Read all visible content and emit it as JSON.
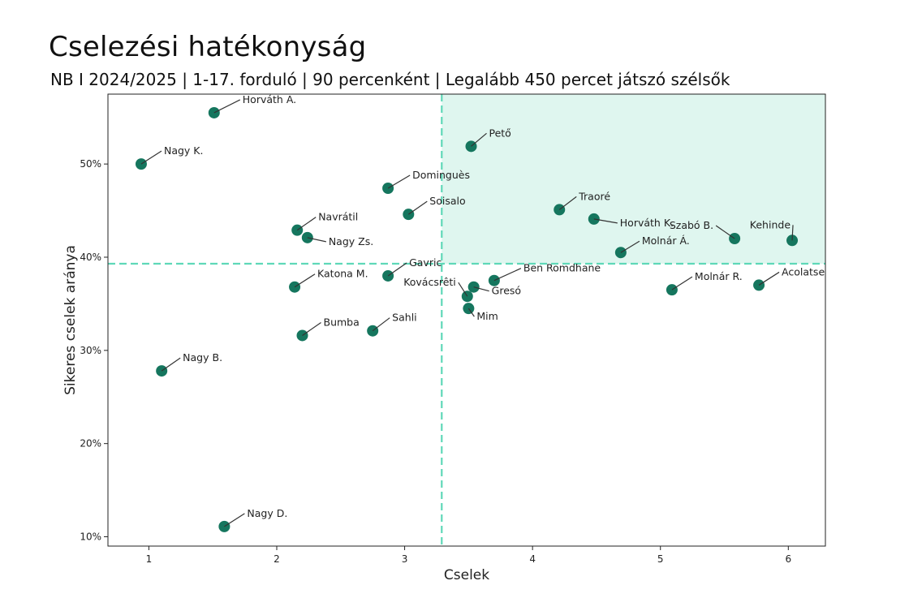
{
  "title": "Cselezési hatékonyság",
  "subtitle": "NB I 2024/2025  |  1-17. forduló  |  90 percenként  |  Legalább 450 percet játszó szélsők",
  "colors": {
    "point": "#15765e",
    "threshold_line": "#5fd8b8",
    "highlight_fill": "#dff6ef",
    "axis": "#222222"
  },
  "chart_data": {
    "type": "scatter",
    "title": "Cselezési hatékonyság",
    "subtitle": "NB I 2024/2025  |  1-17. forduló  |  90 percenként  |  Legalább 450 percet játszó szélsők",
    "xlabel": "Cselek",
    "ylabel": "Sikeres cselek aránya",
    "xlim": [
      0.68,
      6.29
    ],
    "ylim": [
      9.0,
      57.5
    ],
    "xticks": [
      1,
      2,
      3,
      4,
      5,
      6
    ],
    "xtick_labels": [
      "1",
      "2",
      "3",
      "4",
      "5",
      "6"
    ],
    "yticks": [
      10,
      20,
      30,
      40,
      50
    ],
    "ytick_labels": [
      "10%",
      "20%",
      "30%",
      "40%",
      "50%"
    ],
    "x_threshold": 3.29,
    "y_threshold": 39.3,
    "highlight_quadrant": "top-right",
    "grid": false,
    "points": [
      {
        "name": "Horváth A.",
        "x": 1.51,
        "y": 55.5,
        "lx": 35,
        "ly": -12,
        "anchor": "start"
      },
      {
        "name": "Nagy K.",
        "x": 0.94,
        "y": 50.0,
        "lx": 28,
        "ly": -12,
        "anchor": "start"
      },
      {
        "name": "Pető",
        "x": 3.52,
        "y": 51.9,
        "lx": 22,
        "ly": -12,
        "anchor": "start"
      },
      {
        "name": "Dominguès",
        "x": 2.87,
        "y": 47.4,
        "lx": 30,
        "ly": -12,
        "anchor": "start"
      },
      {
        "name": "Soisalo",
        "x": 3.03,
        "y": 44.6,
        "lx": 26,
        "ly": -12,
        "anchor": "start"
      },
      {
        "name": "Traoré",
        "x": 4.21,
        "y": 45.1,
        "lx": 24,
        "ly": -12,
        "anchor": "start"
      },
      {
        "name": "Horváth K.",
        "x": 4.48,
        "y": 44.1,
        "lx": 32,
        "ly": 9,
        "anchor": "start"
      },
      {
        "name": "Navrátil",
        "x": 2.16,
        "y": 42.9,
        "lx": 26,
        "ly": -12,
        "anchor": "start"
      },
      {
        "name": "Nagy Zs.",
        "x": 2.24,
        "y": 42.1,
        "lx": 26,
        "ly": 9,
        "anchor": "start"
      },
      {
        "name": "Szabó B.",
        "x": 5.58,
        "y": 42.0,
        "lx": -26,
        "ly": -12,
        "anchor": "end"
      },
      {
        "name": "Kehinde",
        "x": 6.03,
        "y": 41.8,
        "lx": -2,
        "ly": -15,
        "anchor": "end"
      },
      {
        "name": "Molnár Á.",
        "x": 4.69,
        "y": 40.5,
        "lx": 26,
        "ly": -10,
        "anchor": "start"
      },
      {
        "name": "Gavric",
        "x": 2.87,
        "y": 38.0,
        "lx": 26,
        "ly": -12,
        "anchor": "start"
      },
      {
        "name": "Ben Romdhane",
        "x": 3.7,
        "y": 37.5,
        "lx": 36,
        "ly": -11,
        "anchor": "start"
      },
      {
        "name": "Katona M.",
        "x": 2.14,
        "y": 36.8,
        "lx": 28,
        "ly": -12,
        "anchor": "start"
      },
      {
        "name": "Gresó",
        "x": 3.54,
        "y": 36.8,
        "lx": 22,
        "ly": 9,
        "anchor": "start"
      },
      {
        "name": "Kovácsrêti",
        "x": 3.49,
        "y": 35.8,
        "lx": -14,
        "ly": -13,
        "anchor": "end"
      },
      {
        "name": "Molnár R.",
        "x": 5.09,
        "y": 36.5,
        "lx": 28,
        "ly": -12,
        "anchor": "start"
      },
      {
        "name": "Acolatse",
        "x": 5.77,
        "y": 37.0,
        "lx": 28,
        "ly": -12,
        "anchor": "start"
      },
      {
        "name": "Mim",
        "x": 3.5,
        "y": 34.5,
        "lx": 10,
        "ly": 14,
        "anchor": "start"
      },
      {
        "name": "Sahli",
        "x": 2.75,
        "y": 32.1,
        "lx": 24,
        "ly": -12,
        "anchor": "start"
      },
      {
        "name": "Bumba",
        "x": 2.2,
        "y": 31.6,
        "lx": 26,
        "ly": -12,
        "anchor": "start"
      },
      {
        "name": "Nagy B.",
        "x": 1.1,
        "y": 27.8,
        "lx": 26,
        "ly": -12,
        "anchor": "start"
      },
      {
        "name": "Nagy D.",
        "x": 1.59,
        "y": 11.1,
        "lx": 28,
        "ly": -12,
        "anchor": "start"
      }
    ]
  }
}
